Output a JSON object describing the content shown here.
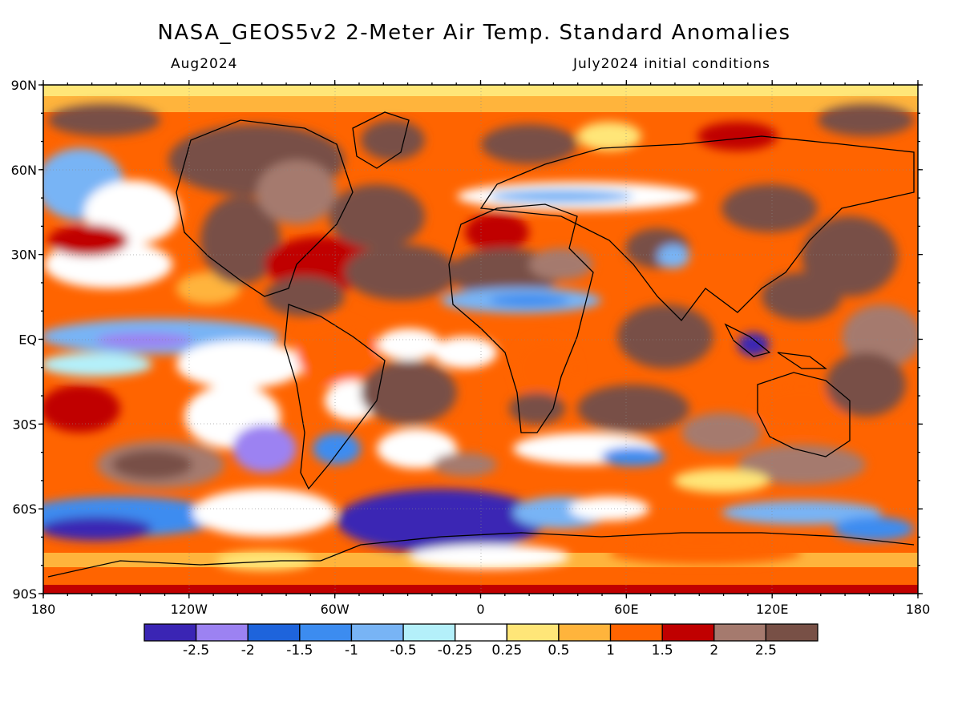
{
  "title": "NASA_GEOS5v2 2-Meter Air Temp. Standard Anomalies",
  "subtitle_left": "Aug2024",
  "subtitle_right": "July2024 initial conditions",
  "lat_labels": [
    "90N",
    "60N",
    "30N",
    "EQ",
    "30S",
    "60S",
    "90S"
  ],
  "lon_labels": [
    "180",
    "120W",
    "60W",
    "0",
    "60E",
    "120E",
    "180"
  ],
  "colorbar": {
    "colors": [
      "#3a25b4",
      "#9c82f2",
      "#1e64dc",
      "#3c8cf0",
      "#78b4f5",
      "#b4f0fa",
      "#ffffff",
      "#ffe678",
      "#ffb43c",
      "#ff6400",
      "#c00000",
      "#a57a6e",
      "#785046"
    ],
    "labels": [
      "-2.5",
      "-2",
      "-1.5",
      "-1",
      "-0.5",
      "-0.25",
      "0.25",
      "0.5",
      "1",
      "1.5",
      "2",
      "2.5"
    ]
  }
}
